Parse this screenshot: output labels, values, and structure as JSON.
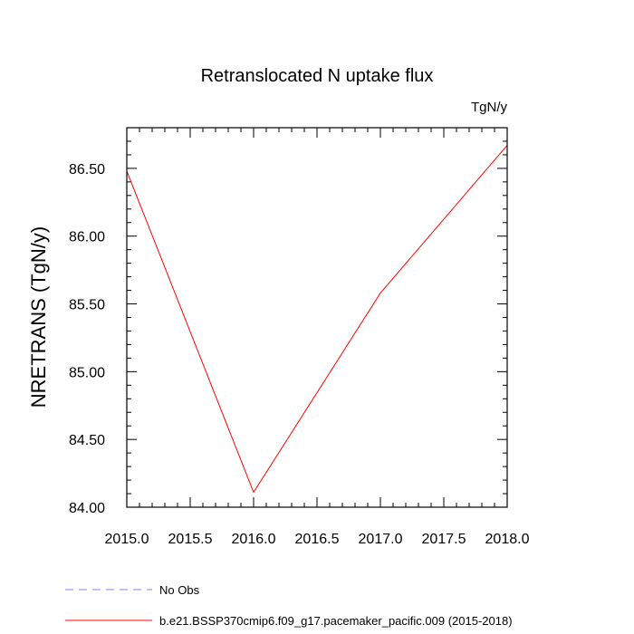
{
  "chart_data": {
    "type": "line",
    "title": "Retranslocated N uptake flux",
    "units": "TgN/y",
    "ylabel": "NRETRANS  (TgN/y)",
    "xlabel": "",
    "xlim": [
      2015.0,
      2018.0
    ],
    "ylim": [
      84.0,
      86.8
    ],
    "x_ticks": [
      "2015.0",
      "2015.5",
      "2016.0",
      "2016.5",
      "2017.0",
      "2017.5",
      "2018.0"
    ],
    "x_tick_values": [
      2015.0,
      2015.5,
      2016.0,
      2016.5,
      2017.0,
      2017.5,
      2018.0
    ],
    "y_ticks": [
      "84.00",
      "84.50",
      "85.00",
      "85.50",
      "86.00",
      "86.50"
    ],
    "y_tick_values": [
      84.0,
      84.5,
      85.0,
      85.5,
      86.0,
      86.5
    ],
    "series": [
      {
        "name": "b.e21.BSSP370cmip6.f09_g17.pacemaker_pacific.009 (2015-2018)",
        "color": "#ff0000",
        "style": "solid",
        "x": [
          2015.0,
          2016.0,
          2017.0,
          2018.0
        ],
        "y": [
          86.48,
          84.11,
          85.58,
          86.67
        ]
      }
    ],
    "legend": [
      {
        "label": "No Obs",
        "color": "#8080ff",
        "style": "dashed"
      },
      {
        "label": "b.e21.BSSP370cmip6.f09_g17.pacemaker_pacific.009 (2015-2018)",
        "color": "#ff0000",
        "style": "solid"
      }
    ],
    "legend_position": "bottom-left",
    "grid": false
  }
}
